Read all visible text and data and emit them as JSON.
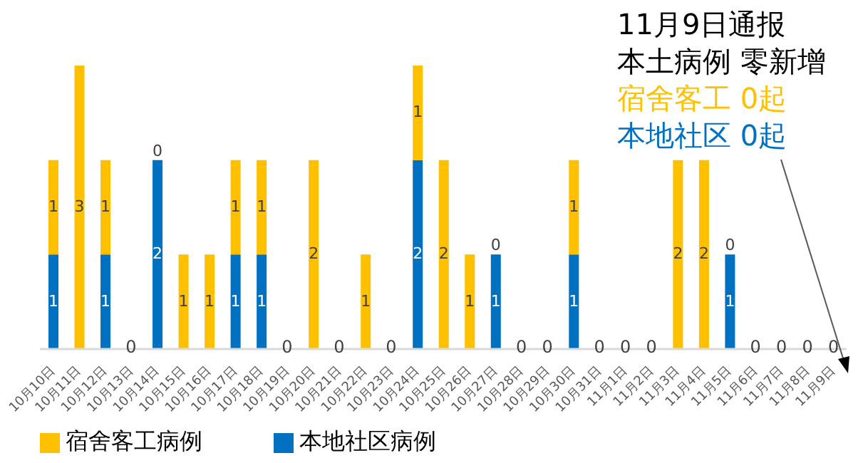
{
  "chart_data": {
    "type": "bar",
    "stacked": true,
    "data_labels": true,
    "legend": "bottom left",
    "tick_labels": "x",
    "ylim": [
      0,
      3
    ],
    "categories": [
      "10月10日",
      "10月11日",
      "10月12日",
      "10月13日",
      "10月14日",
      "10月15日",
      "10月16日",
      "10月17日",
      "10月18日",
      "10月19日",
      "10月20日",
      "10月21日",
      "10月22日",
      "10月23日",
      "10月24日",
      "10月25日",
      "10月26日",
      "10月27日",
      "10月28日",
      "10月29日",
      "10月30日",
      "10月31日",
      "11月1日",
      "11月2日",
      "11月3日",
      "11月4日",
      "11月5日",
      "11月6日",
      "11月7日",
      "11月8日",
      "11月9日"
    ],
    "series": [
      {
        "name": "本地社区病例",
        "color": "#0070c0",
        "values": [
          1,
          0,
          1,
          0,
          2,
          0,
          0,
          1,
          1,
          0,
          0,
          0,
          0,
          0,
          2,
          0,
          0,
          1,
          0,
          0,
          1,
          0,
          0,
          0,
          0,
          0,
          1,
          0,
          0,
          0,
          0
        ],
        "value_labels": [
          "1",
          null,
          "1",
          null,
          "2",
          null,
          null,
          "1",
          "1",
          null,
          null,
          null,
          null,
          null,
          "2",
          null,
          null,
          "1",
          null,
          null,
          "1",
          null,
          null,
          null,
          null,
          null,
          "1",
          null,
          null,
          null,
          null
        ]
      },
      {
        "name": "宿舍客工病例",
        "color": "#ffc000",
        "values": [
          1,
          3,
          1,
          0,
          0,
          1,
          1,
          1,
          1,
          0,
          2,
          0,
          1,
          0,
          1,
          2,
          1,
          0,
          0,
          0,
          1,
          0,
          0,
          0,
          2,
          2,
          0,
          0,
          0,
          0,
          0
        ],
        "value_labels": [
          "1",
          "3",
          "1",
          null,
          "0",
          "1",
          "1",
          "1",
          "1",
          null,
          "2",
          null,
          "1",
          null,
          "1",
          "2",
          "1",
          "0",
          null,
          null,
          "1",
          null,
          null,
          null,
          "2",
          "2",
          "0",
          null,
          null,
          null,
          null
        ]
      }
    ],
    "totals": [
      null,
      null,
      null,
      "0",
      null,
      null,
      null,
      null,
      null,
      "0",
      null,
      "0",
      null,
      "0",
      null,
      null,
      null,
      null,
      "0",
      "0",
      null,
      "0",
      "0",
      "0",
      null,
      null,
      null,
      "0",
      "0",
      "0",
      "0"
    ],
    "annotations": [
      "11月9日通报",
      "本土病例 零新增",
      "宿舍客工 0起",
      "本地社区 0起"
    ]
  }
}
